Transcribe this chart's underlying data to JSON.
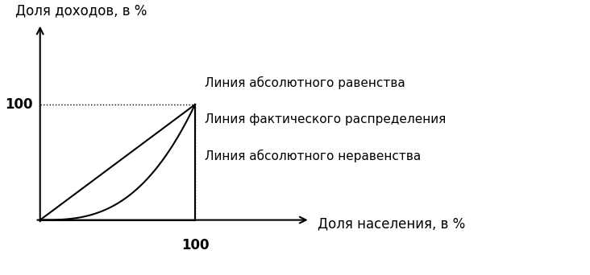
{
  "title_y": "Доля доходов, в %",
  "title_x": "Доля населения, в %",
  "label_100_x": "100",
  "label_100_y": "100",
  "label_equality": "Линия абсолютного равенства",
  "label_actual": "Линия фактического распределения",
  "label_inequality": "Линия абсолютного неравенства",
  "bg_color": "#ffffff",
  "line_color": "#000000",
  "dotted_color": "#000000",
  "font_size_labels": 11,
  "font_size_axis_title": 12,
  "font_size_tick": 12
}
